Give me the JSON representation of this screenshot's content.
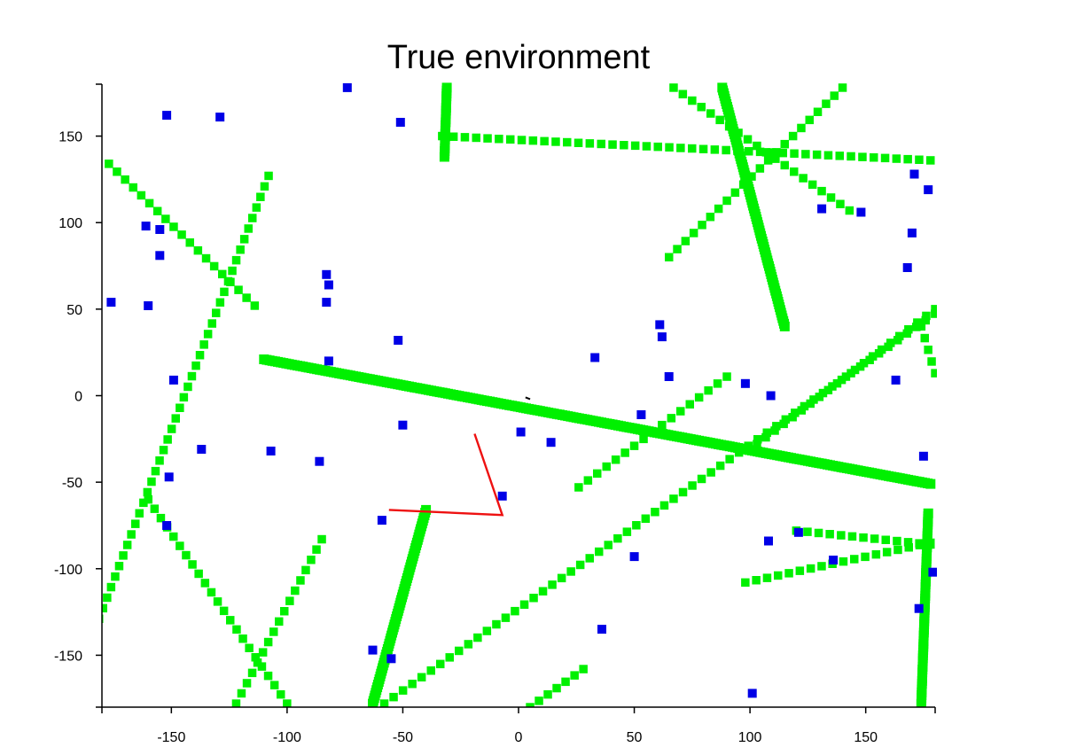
{
  "chart_data": {
    "type": "scatter",
    "title": "True environment",
    "xlabel": "",
    "ylabel": "",
    "xlim": [
      -180,
      180
    ],
    "ylim": [
      -180,
      180
    ],
    "x_ticks": [
      -150,
      -100,
      -50,
      0,
      50,
      100,
      150
    ],
    "y_ticks": [
      150,
      100,
      50,
      0,
      -50,
      -100,
      -150
    ],
    "grid": false,
    "colors": {
      "landmarks": "#0000e6",
      "walls": "#00f000",
      "path": "#ee1111",
      "heading": "#000000"
    },
    "landmarks": [
      [
        -74,
        178
      ],
      [
        -152,
        162
      ],
      [
        -129,
        161
      ],
      [
        -51,
        158
      ],
      [
        -161,
        98
      ],
      [
        -155,
        96
      ],
      [
        -155,
        81
      ],
      [
        -83,
        70
      ],
      [
        -82,
        64
      ],
      [
        -176,
        54
      ],
      [
        -160,
        52
      ],
      [
        -83,
        54
      ],
      [
        -52,
        32
      ],
      [
        -82,
        20
      ],
      [
        -149,
        9
      ],
      [
        33,
        22
      ],
      [
        61,
        41
      ],
      [
        62,
        34
      ],
      [
        65,
        11
      ],
      [
        98,
        7
      ],
      [
        109,
        0
      ],
      [
        53,
        -11
      ],
      [
        1,
        -21
      ],
      [
        14,
        -27
      ],
      [
        -50,
        -17
      ],
      [
        -137,
        -31
      ],
      [
        -107,
        -32
      ],
      [
        -86,
        -38
      ],
      [
        -151,
        -47
      ],
      [
        -7,
        -58
      ],
      [
        -59,
        -72
      ],
      [
        -152,
        -75
      ],
      [
        108,
        -84
      ],
      [
        121,
        -79
      ],
      [
        50,
        -93
      ],
      [
        136,
        -95
      ],
      [
        36,
        -135
      ],
      [
        -63,
        -147
      ],
      [
        -55,
        -152
      ],
      [
        101,
        -172
      ],
      [
        131,
        108
      ],
      [
        148,
        106
      ],
      [
        171,
        128
      ],
      [
        177,
        119
      ],
      [
        170,
        94
      ],
      [
        168,
        74
      ],
      [
        163,
        9
      ],
      [
        175,
        -35
      ],
      [
        173,
        -123
      ],
      [
        179,
        -102
      ]
    ],
    "walls": [
      {
        "from": [
          -110,
          21
        ],
        "to": [
          178,
          -51
        ],
        "thick": true
      },
      {
        "from": [
          -31,
          178
        ],
        "to": [
          -32,
          138
        ],
        "thick": true
      },
      {
        "from": [
          -33,
          150
        ],
        "to": [
          178,
          136
        ],
        "thick": false
      },
      {
        "from": [
          -177,
          134
        ],
        "to": [
          -114,
          52
        ],
        "thick": false
      },
      {
        "from": [
          -108,
          127
        ],
        "to": [
          -183,
          -135
        ],
        "thick": false
      },
      {
        "from": [
          88,
          178
        ],
        "to": [
          115,
          40
        ],
        "thick": true
      },
      {
        "from": [
          67,
          178
        ],
        "to": [
          143,
          107
        ],
        "thick": false
      },
      {
        "from": [
          140,
          178
        ],
        "to": [
          65,
          80
        ],
        "thick": false
      },
      {
        "from": [
          -160,
          -60
        ],
        "to": [
          -100,
          -178
        ],
        "thick": false
      },
      {
        "from": [
          -85,
          -83
        ],
        "to": [
          -122,
          -178
        ],
        "thick": false
      },
      {
        "from": [
          -40,
          -66
        ],
        "to": [
          -63,
          -178
        ],
        "thick": true
      },
      {
        "from": [
          188,
          55
        ],
        "to": [
          -58,
          -178
        ],
        "thick": false
      },
      {
        "from": [
          90,
          11
        ],
        "to": [
          26,
          -53
        ],
        "thick": false
      },
      {
        "from": [
          180,
          50
        ],
        "to": [
          103,
          -28
        ],
        "thick": false
      },
      {
        "from": [
          28,
          -158
        ],
        "to": [
          5,
          -180
        ],
        "thick": false
      },
      {
        "from": [
          120,
          -78
        ],
        "to": [
          178,
          -86
        ],
        "thick": false
      },
      {
        "from": [
          98,
          -108
        ],
        "to": [
          178,
          -85
        ],
        "thick": false
      },
      {
        "from": [
          177,
          -68
        ],
        "to": [
          174,
          -178
        ],
        "thick": true
      },
      {
        "from": [
          174,
          40
        ],
        "to": [
          180,
          13
        ],
        "thick": false
      }
    ],
    "path": [
      [
        -19,
        -22
      ],
      [
        -7,
        -69
      ],
      [
        -56,
        -66
      ]
    ],
    "heading_mark": [
      [
        3,
        -1
      ],
      [
        5,
        -2
      ]
    ]
  }
}
